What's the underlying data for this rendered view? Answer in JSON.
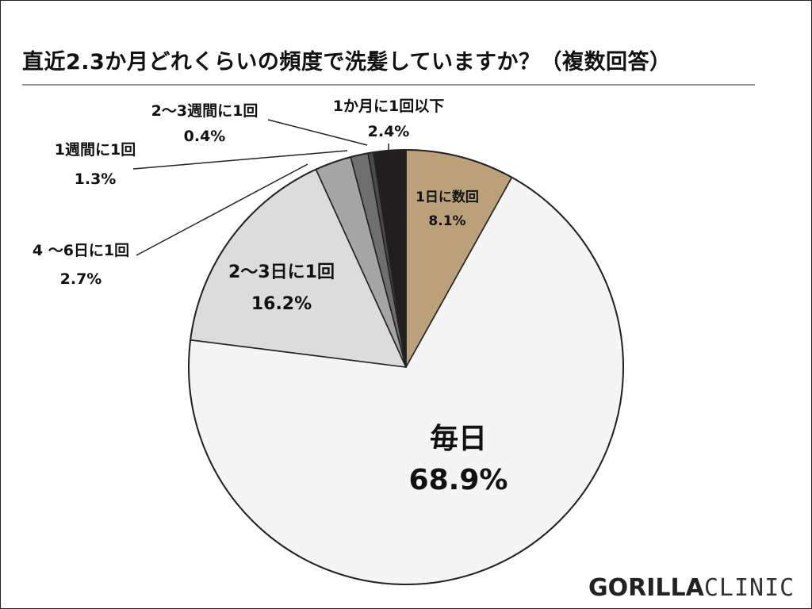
{
  "chart_data": {
    "type": "pie",
    "title": "直近2.3か月どれくらいの頻度で洗髪していますか？（複数回答）",
    "unit": "%",
    "slices": [
      {
        "label": "1日に数回",
        "value": 8.1,
        "display": "8.1%",
        "color": "#bba17a",
        "text_color": "#111111"
      },
      {
        "label": "毎日",
        "value": 68.9,
        "display": "68.9%",
        "color": "#f4f4f4",
        "text_color": "#111111"
      },
      {
        "label": "2〜3日に1回",
        "value": 16.2,
        "display": "16.2%",
        "color": "#dcdcdc",
        "text_color": "#111111"
      },
      {
        "label": "4 〜6日に1回",
        "value": 2.7,
        "display": "2.7%",
        "color": "#a5a5a5",
        "text_color": "#111111"
      },
      {
        "label": "1週間に1回",
        "value": 1.3,
        "display": "1.3%",
        "color": "#6f6f6f",
        "text_color": "#111111"
      },
      {
        "label": "2〜3週間に1回",
        "value": 0.4,
        "display": "0.4%",
        "color": "#4a4a4a",
        "text_color": "#111111"
      },
      {
        "label": "1か月に1回以下",
        "value": 2.4,
        "display": "2.4%",
        "color": "#221e1f",
        "text_color": "#111111"
      }
    ],
    "legend": "none"
  },
  "brand": {
    "logo_bold": "GORILLA",
    "logo_light": "CLINIC"
  }
}
